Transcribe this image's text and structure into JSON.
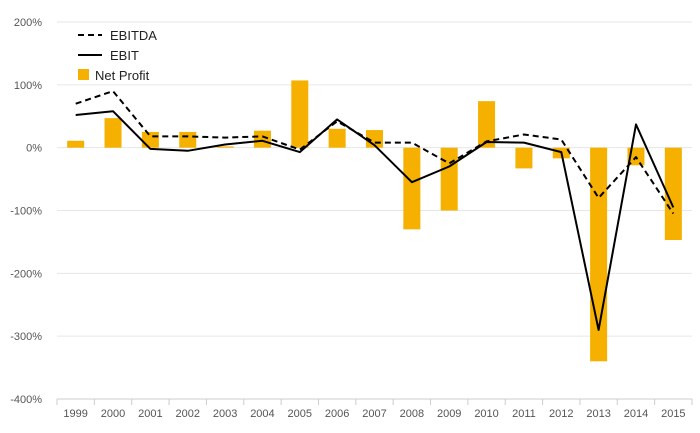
{
  "chart_data": {
    "type": "bar",
    "categories": [
      "1999",
      "2000",
      "2001",
      "2002",
      "2003",
      "2004",
      "2005",
      "2006",
      "2007",
      "2008",
      "2009",
      "2010",
      "2011",
      "2012",
      "2013",
      "2014",
      "2015"
    ],
    "y_ticks": [
      "200%",
      "100%",
      "0%",
      "-100%",
      "-200%",
      "-300%",
      "-400%"
    ],
    "ylim": [
      -400,
      200
    ],
    "grid": true,
    "legend_position": "top-left",
    "series": [
      {
        "name": "EBITDA",
        "type": "line",
        "style": "dashed",
        "color": "#000000",
        "values": [
          70,
          90,
          18,
          18,
          16,
          18,
          -3,
          42,
          8,
          8,
          -25,
          10,
          21,
          13,
          -80,
          -15,
          -105
        ]
      },
      {
        "name": "EBIT",
        "type": "line",
        "style": "solid",
        "color": "#000000",
        "values": [
          52,
          58,
          -2,
          -5,
          5,
          11,
          -7,
          45,
          4,
          -55,
          -30,
          9,
          8,
          -7,
          -290,
          37,
          -95
        ]
      },
      {
        "name": "Net Profit",
        "type": "bar",
        "color": "#f5b000",
        "values": [
          11,
          47,
          25,
          25,
          2,
          27,
          107,
          30,
          28,
          -130,
          -100,
          74,
          -33,
          -17,
          -340,
          -28,
          -147
        ]
      }
    ]
  }
}
